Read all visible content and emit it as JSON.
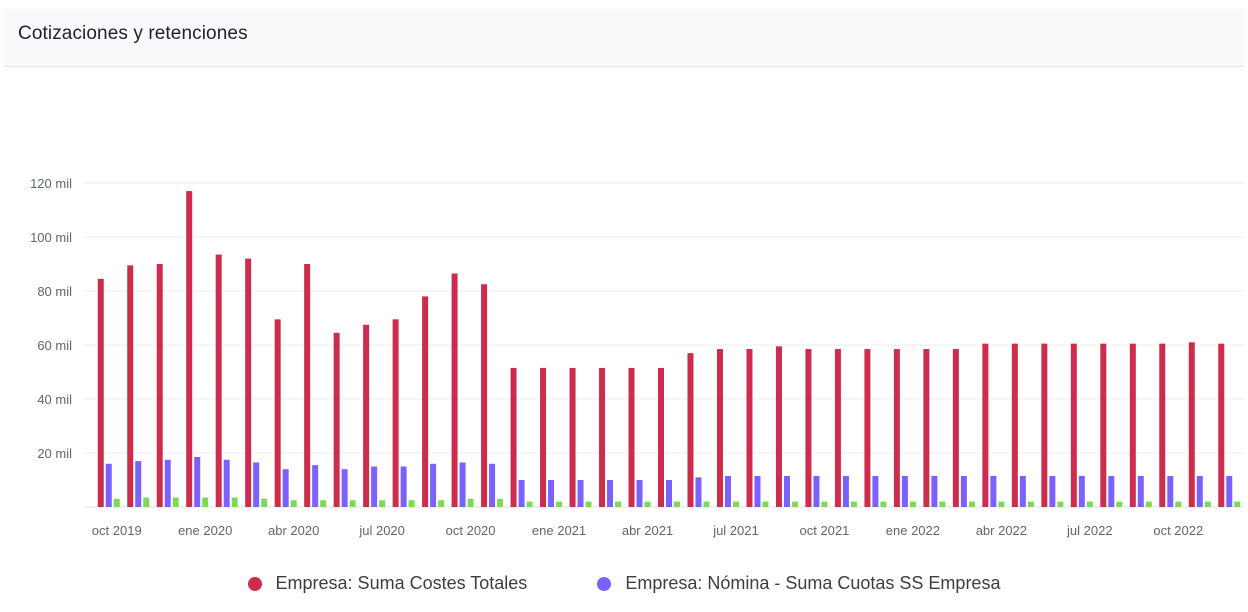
{
  "panel": {
    "title": "Cotizaciones y retenciones"
  },
  "chart_data": {
    "type": "bar",
    "title": "Cotizaciones y retenciones",
    "ylim": [
      0,
      120000
    ],
    "y_ticks": [
      {
        "value": 20000,
        "label": "20 mil"
      },
      {
        "value": 40000,
        "label": "40 mil"
      },
      {
        "value": 60000,
        "label": "60 mil"
      },
      {
        "value": 80000,
        "label": "80 mil"
      },
      {
        "value": 100000,
        "label": "100 mil"
      },
      {
        "value": 120000,
        "label": "120 mil"
      }
    ],
    "categories": [
      "oct 2019",
      "nov 2019",
      "dic 2019",
      "ene 2020",
      "feb 2020",
      "mar 2020",
      "abr 2020",
      "may 2020",
      "jun 2020",
      "jul 2020",
      "ago 2020",
      "sep 2020",
      "oct 2020",
      "nov 2020",
      "dic 2020",
      "ene 2021",
      "feb 2021",
      "mar 2021",
      "abr 2021",
      "may 2021",
      "jun 2021",
      "jul 2021",
      "ago 2021",
      "sep 2021",
      "oct 2021",
      "nov 2021",
      "dic 2021",
      "ene 2022",
      "feb 2022",
      "mar 2022",
      "abr 2022",
      "may 2022",
      "jun 2022",
      "jul 2022",
      "ago 2022",
      "sep 2022",
      "oct 2022",
      "nov 2022",
      "dic 2022"
    ],
    "x_tick_labels": [
      {
        "index": 0,
        "label": "oct 2019"
      },
      {
        "index": 3,
        "label": "ene 2020"
      },
      {
        "index": 6,
        "label": "abr 2020"
      },
      {
        "index": 9,
        "label": "jul 2020"
      },
      {
        "index": 12,
        "label": "oct 2020"
      },
      {
        "index": 15,
        "label": "ene 2021"
      },
      {
        "index": 18,
        "label": "abr 2021"
      },
      {
        "index": 21,
        "label": "jul 2021"
      },
      {
        "index": 24,
        "label": "oct 2021"
      },
      {
        "index": 27,
        "label": "ene 2022"
      },
      {
        "index": 30,
        "label": "abr 2022"
      },
      {
        "index": 33,
        "label": "jul 2022"
      },
      {
        "index": 36,
        "label": "oct 2022"
      }
    ],
    "series": [
      {
        "name": "Empresa: Suma Costes Totales",
        "color": "#cc2d4c",
        "values": [
          84500,
          89500,
          90000,
          117000,
          93500,
          92000,
          69500,
          90000,
          64500,
          67500,
          69500,
          78000,
          86500,
          82500,
          51500,
          51500,
          51500,
          51500,
          51500,
          51500,
          57000,
          58500,
          58500,
          59500,
          58500,
          58500,
          58500,
          58500,
          58500,
          58500,
          60500,
          60500,
          60500,
          60500,
          60500,
          60500,
          60500,
          61000,
          60500
        ]
      },
      {
        "name": "Empresa: Nómina - Suma Cuotas SS Empresa",
        "color": "#7b61ff",
        "values": [
          16000,
          17000,
          17500,
          18500,
          17500,
          16500,
          14000,
          15500,
          14000,
          15000,
          15000,
          16000,
          16500,
          16000,
          10000,
          10000,
          10000,
          10000,
          10000,
          10000,
          11000,
          11500,
          11500,
          11500,
          11500,
          11500,
          11500,
          11500,
          11500,
          11500,
          11500,
          11500,
          11500,
          11500,
          11500,
          11500,
          11500,
          11500,
          11500
        ]
      },
      {
        "color": "#7ed957",
        "values": [
          3000,
          3500,
          3500,
          3500,
          3500,
          3000,
          2500,
          2500,
          2500,
          2500,
          2500,
          2500,
          3000,
          3000,
          2000,
          2000,
          2000,
          2000,
          2000,
          2000,
          2000,
          2000,
          2000,
          2000,
          2000,
          2000,
          2000,
          2000,
          2000,
          2000,
          2000,
          2000,
          2000,
          2000,
          2000,
          2000,
          2000,
          2000,
          2000
        ]
      }
    ],
    "legend": [
      {
        "label": "Empresa: Suma Costes Totales",
        "color": "#cc2d4c"
      },
      {
        "label": "Empresa: Nómina - Suma Cuotas SS Empresa",
        "color": "#7b61ff"
      }
    ],
    "legend_position": "bottom",
    "grid": true
  }
}
